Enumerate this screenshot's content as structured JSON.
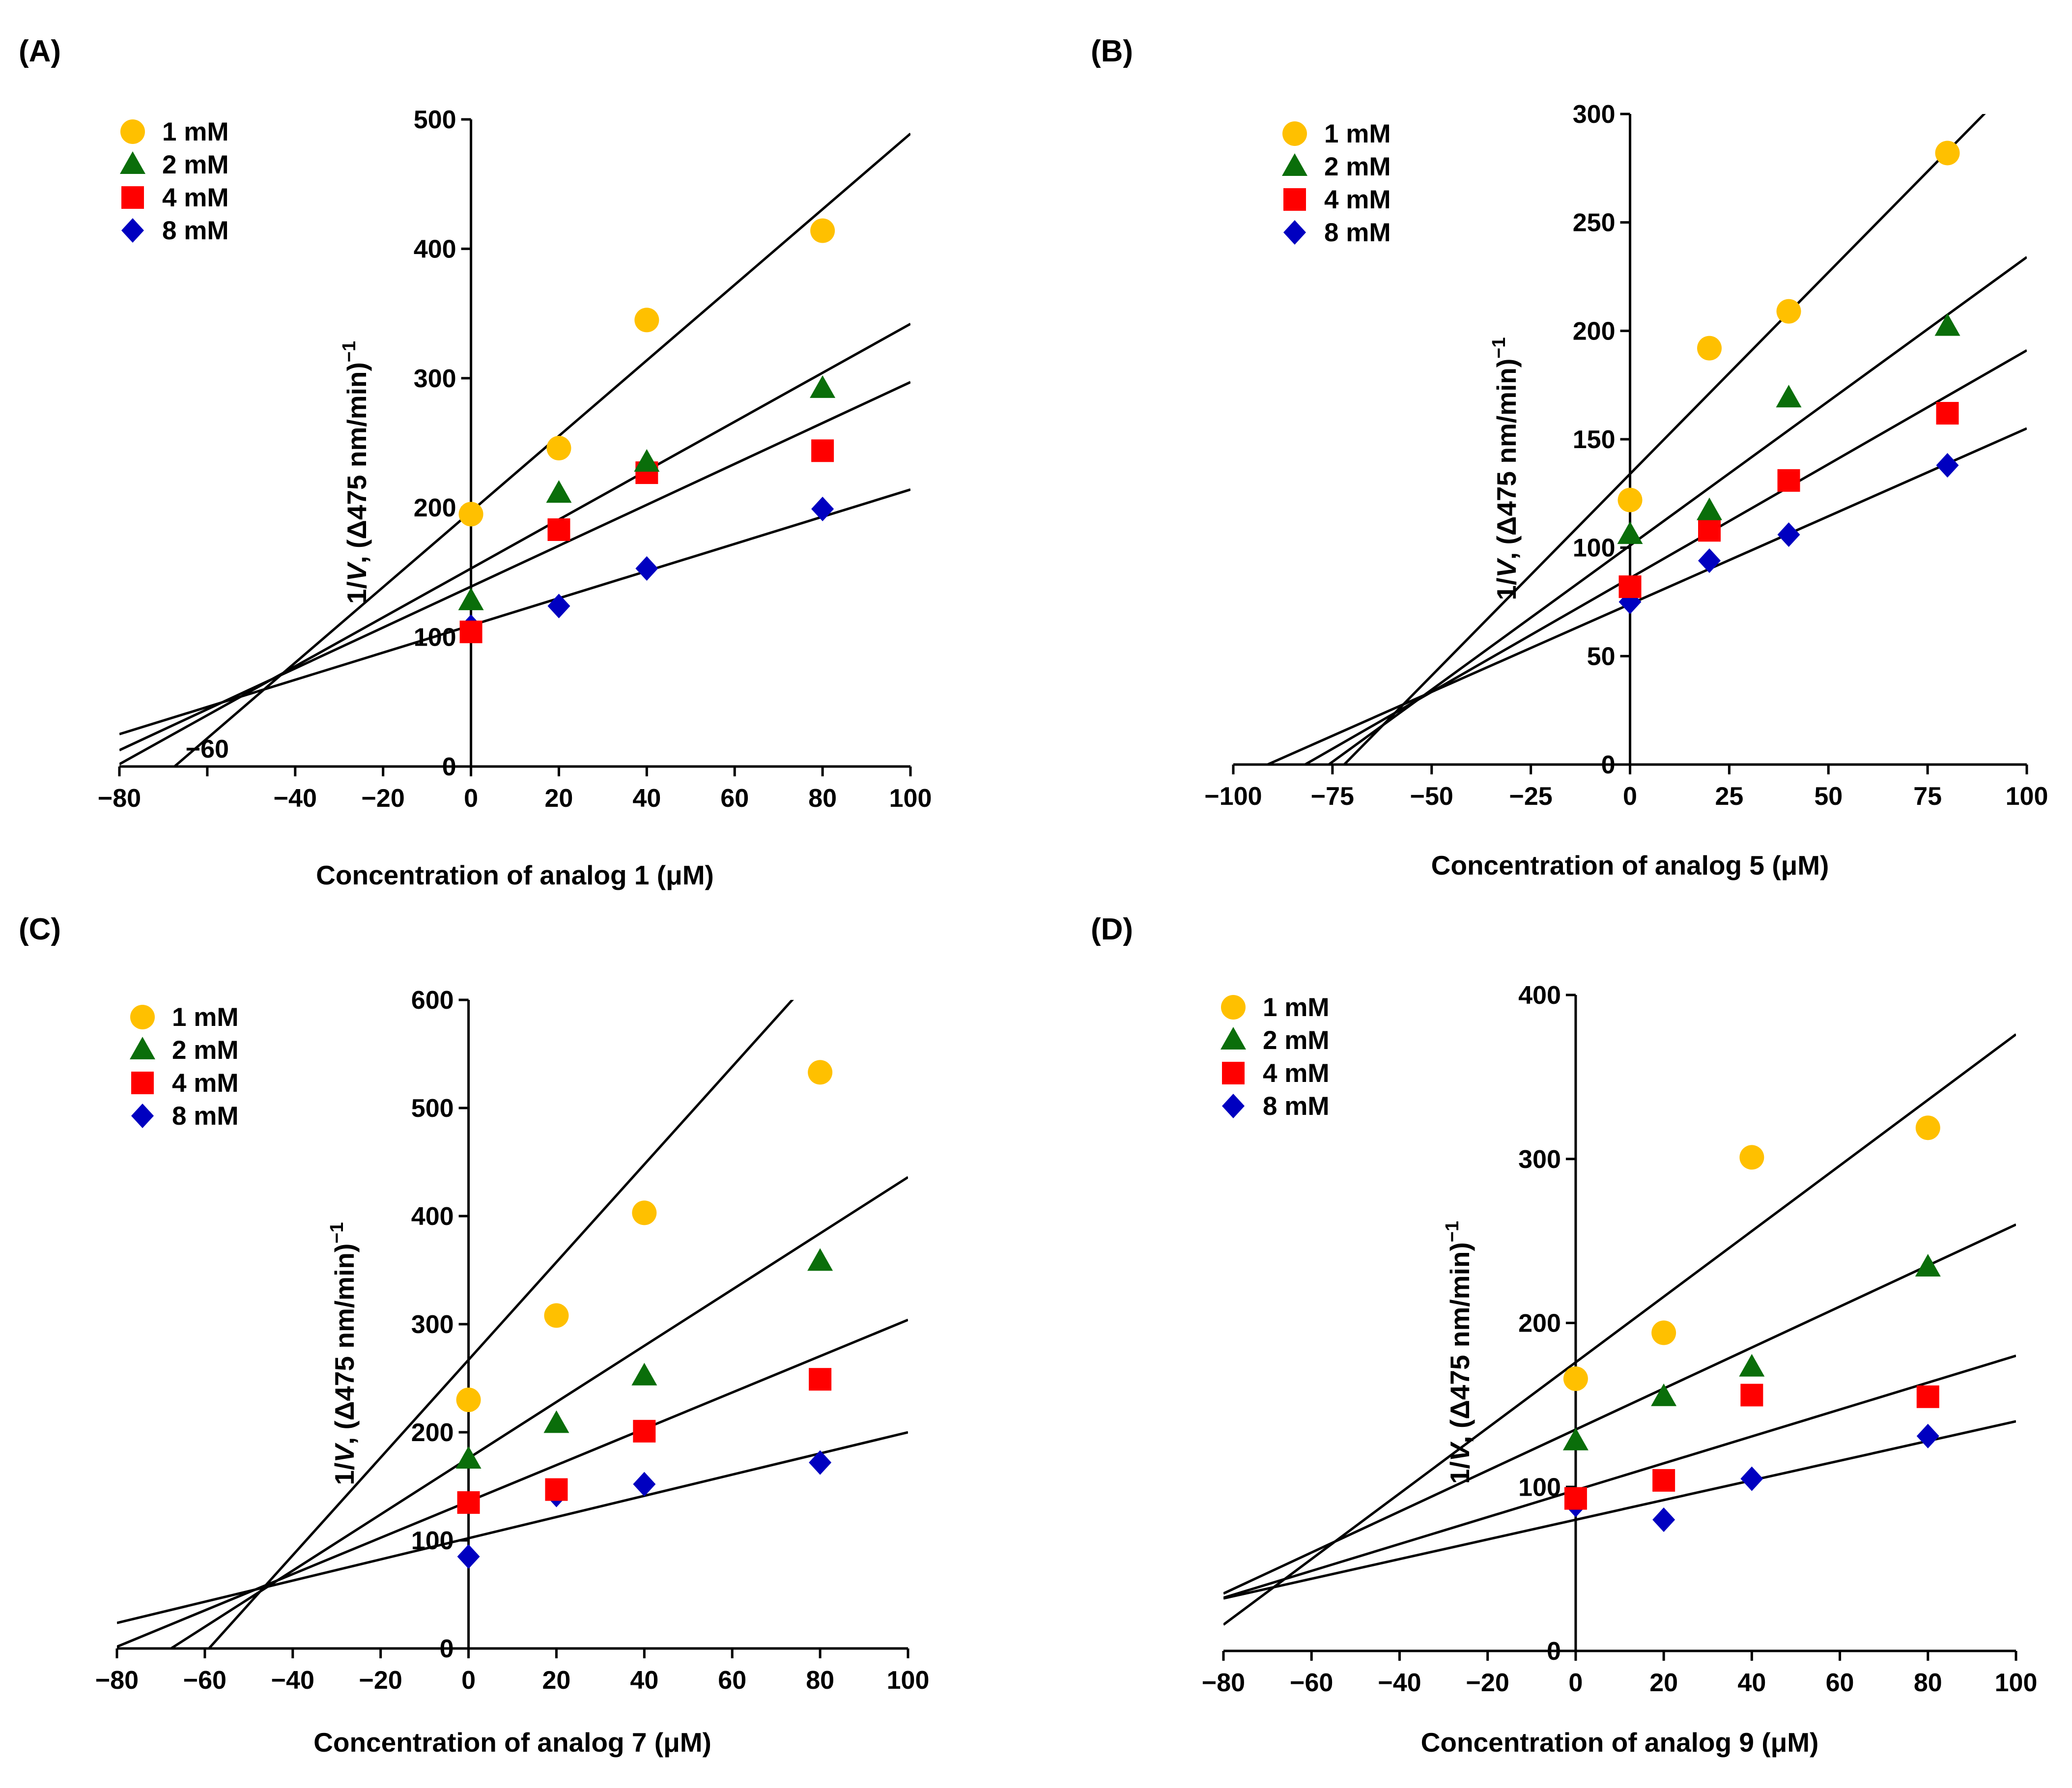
{
  "colors": {
    "1 mM": "#ffc000",
    "2 mM": "#0a6e0a",
    "4 mM": "#ff0000",
    "8 mM": "#0000c0",
    "line": "#000000"
  },
  "marker_shapes": {
    "1 mM": "circle",
    "2 mM": "triangle",
    "4 mM": "square",
    "8 mM": "diamond"
  },
  "chart_data": [
    {
      "panel_label": "(A)",
      "type": "scatter",
      "title": "",
      "xlabel": "Concentration of analog 1 (μM)",
      "ylabel_prefix": "1/",
      "ylabel_italic": "V",
      "ylabel_suffix": ", (Δ475 nm/min)",
      "ylabel_sup": "−1",
      "xlim": [
        -80,
        100
      ],
      "ylim": [
        0,
        500
      ],
      "xticks": [
        -80,
        -60,
        -40,
        -20,
        0,
        20,
        40,
        60,
        80,
        100
      ],
      "xtick_labels": [
        "−80",
        "−40",
        "−20",
        "0",
        "20",
        "40",
        "60",
        "80",
        "100"
      ],
      "xtick_label_values": [
        -80,
        -40,
        -20,
        0,
        20,
        40,
        60,
        80,
        100
      ],
      "extra_xtick_labels": [
        {
          "text": "−60",
          "value": -60,
          "placement": "inside-axis"
        }
      ],
      "yticks": [
        0,
        100,
        200,
        300,
        400,
        500
      ],
      "ytick_labels": [
        "0",
        "100",
        "200",
        "300",
        "400",
        "500"
      ],
      "legend": [
        "1 mM",
        "2 mM",
        "4 mM",
        "8 mM"
      ],
      "legend_position": "top-left",
      "series": [
        {
          "name": "1 mM",
          "x": [
            0,
            20,
            40,
            80
          ],
          "y": [
            195,
            246,
            345,
            414
          ],
          "fit": {
            "slope": 2.92,
            "intercept": 197
          }
        },
        {
          "name": "2 mM",
          "x": [
            0,
            20,
            40,
            80
          ],
          "y": [
            128,
            211,
            235,
            292
          ],
          "fit": {
            "slope": 1.89,
            "intercept": 153
          }
        },
        {
          "name": "4 mM",
          "x": [
            0,
            20,
            40,
            80
          ],
          "y": [
            104,
            183,
            227,
            244
          ],
          "fit": {
            "slope": 1.58,
            "intercept": 139
          }
        },
        {
          "name": "8 mM",
          "x": [
            0,
            20,
            40,
            80
          ],
          "y": [
            108,
            124,
            153,
            199
          ],
          "fit": {
            "slope": 1.05,
            "intercept": 109
          }
        }
      ]
    },
    {
      "panel_label": "(B)",
      "type": "scatter",
      "title": "",
      "xlabel": "Concentration of analog 5 (μM)",
      "ylabel_prefix": "1/",
      "ylabel_italic": "V",
      "ylabel_suffix": ", (Δ475 nm/min)",
      "ylabel_sup": "−1",
      "xlim": [
        -100,
        100
      ],
      "ylim": [
        0,
        300
      ],
      "xticks": [
        -100,
        -75,
        -50,
        -25,
        0,
        25,
        50,
        75,
        100
      ],
      "xtick_labels": [
        "−100",
        "−75",
        "−50",
        "−25",
        "0",
        "25",
        "50",
        "75",
        "100"
      ],
      "xtick_label_values": [
        -100,
        -75,
        -50,
        -25,
        0,
        25,
        50,
        75,
        100
      ],
      "extra_xtick_labels": [],
      "yticks": [
        0,
        50,
        100,
        150,
        200,
        250,
        300
      ],
      "ytick_labels": [
        "0",
        "50",
        "100",
        "150",
        "200",
        "250",
        "300"
      ],
      "legend": [
        "1 mM",
        "2 mM",
        "4 mM",
        "8 mM"
      ],
      "legend_position": "top-left",
      "series": [
        {
          "name": "1 mM",
          "x": [
            0,
            20,
            40,
            80
          ],
          "y": [
            122,
            192,
            209,
            282
          ],
          "fit": {
            "slope": 1.86,
            "intercept": 134
          }
        },
        {
          "name": "2 mM",
          "x": [
            0,
            20,
            40,
            80
          ],
          "y": [
            106,
            117,
            169,
            202
          ],
          "fit": {
            "slope": 1.33,
            "intercept": 101
          }
        },
        {
          "name": "4 mM",
          "x": [
            0,
            20,
            40,
            80
          ],
          "y": [
            82,
            108,
            131,
            162
          ],
          "fit": {
            "slope": 1.05,
            "intercept": 86
          }
        },
        {
          "name": "8 mM",
          "x": [
            0,
            20,
            40,
            80
          ],
          "y": [
            75,
            94,
            106,
            138
          ],
          "fit": {
            "slope": 0.81,
            "intercept": 74
          }
        }
      ]
    },
    {
      "panel_label": "(C)",
      "type": "scatter",
      "title": "",
      "xlabel": "Concentration of analog 7 (μM)",
      "ylabel_prefix": "1/",
      "ylabel_italic": "V",
      "ylabel_suffix": ", (Δ475 nm/min)",
      "ylabel_sup": "−1",
      "xlim": [
        -80,
        100
      ],
      "ylim": [
        0,
        600
      ],
      "xticks": [
        -80,
        -60,
        -40,
        -20,
        0,
        20,
        40,
        60,
        80,
        100
      ],
      "xtick_labels": [
        "−80",
        "−60",
        "−40",
        "−20",
        "0",
        "20",
        "40",
        "60",
        "80",
        "100"
      ],
      "xtick_label_values": [
        -80,
        -60,
        -40,
        -20,
        0,
        20,
        40,
        60,
        80,
        100
      ],
      "extra_xtick_labels": [],
      "yticks": [
        0,
        100,
        200,
        300,
        400,
        500,
        600
      ],
      "ytick_labels": [
        "0",
        "100",
        "200",
        "300",
        "400",
        "500",
        "600"
      ],
      "legend": [
        "1 mM",
        "2 mM",
        "4 mM",
        "8 mM"
      ],
      "legend_position": "top-left",
      "series": [
        {
          "name": "1 mM",
          "x": [
            0,
            20,
            40,
            80
          ],
          "y": [
            230,
            308,
            403,
            533
          ],
          "fit": {
            "slope": 4.52,
            "intercept": 267
          }
        },
        {
          "name": "2 mM",
          "x": [
            0,
            20,
            40,
            80
          ],
          "y": [
            175,
            208,
            252,
            358
          ],
          "fit": {
            "slope": 2.6,
            "intercept": 176
          }
        },
        {
          "name": "4 mM",
          "x": [
            0,
            20,
            40,
            80
          ],
          "y": [
            135,
            147,
            201,
            249
          ],
          "fit": {
            "slope": 1.68,
            "intercept": 136
          }
        },
        {
          "name": "8 mM",
          "x": [
            0,
            20,
            40,
            80
          ],
          "y": [
            85,
            142,
            152,
            172
          ],
          "fit": {
            "slope": 0.98,
            "intercept": 102
          }
        }
      ]
    },
    {
      "panel_label": "(D)",
      "type": "scatter",
      "title": "",
      "xlabel": "Concentration of analog 9 (μM)",
      "ylabel_prefix": "1/",
      "ylabel_italic": "V",
      "ylabel_suffix": ", (Δ475 nm/min)",
      "ylabel_sup": "−1",
      "xlim": [
        -80,
        100
      ],
      "ylim": [
        0,
        400
      ],
      "xticks": [
        -80,
        -60,
        -40,
        -20,
        0,
        20,
        40,
        60,
        80,
        100
      ],
      "xtick_labels": [
        "−80",
        "−60",
        "−40",
        "−20",
        "0",
        "20",
        "40",
        "60",
        "80",
        "100"
      ],
      "xtick_label_values": [
        -80,
        -60,
        -40,
        -20,
        0,
        20,
        40,
        60,
        80,
        100
      ],
      "extra_xtick_labels": [],
      "yticks": [
        0,
        100,
        200,
        300,
        400
      ],
      "ytick_labels": [
        "0",
        "100",
        "200",
        "300",
        "400"
      ],
      "legend": [
        "1 mM",
        "2 mM",
        "4 mM",
        "8 mM"
      ],
      "legend_position": "top-left",
      "series": [
        {
          "name": "1 mM",
          "x": [
            0,
            20,
            40,
            80
          ],
          "y": [
            166,
            194,
            301,
            319
          ],
          "fit": {
            "slope": 2.0,
            "intercept": 176
          }
        },
        {
          "name": "2 mM",
          "x": [
            0,
            20,
            40,
            80
          ],
          "y": [
            128,
            155,
            173,
            234
          ],
          "fit": {
            "slope": 1.25,
            "intercept": 135
          }
        },
        {
          "name": "4 mM",
          "x": [
            0,
            20,
            40,
            80
          ],
          "y": [
            93,
            104,
            156,
            155
          ],
          "fit": {
            "slope": 0.82,
            "intercept": 98
          }
        },
        {
          "name": "8 mM",
          "x": [
            0,
            20,
            40,
            80
          ],
          "y": [
            89,
            80,
            105,
            131
          ],
          "fit": {
            "slope": 0.6,
            "intercept": 80
          }
        }
      ]
    }
  ]
}
